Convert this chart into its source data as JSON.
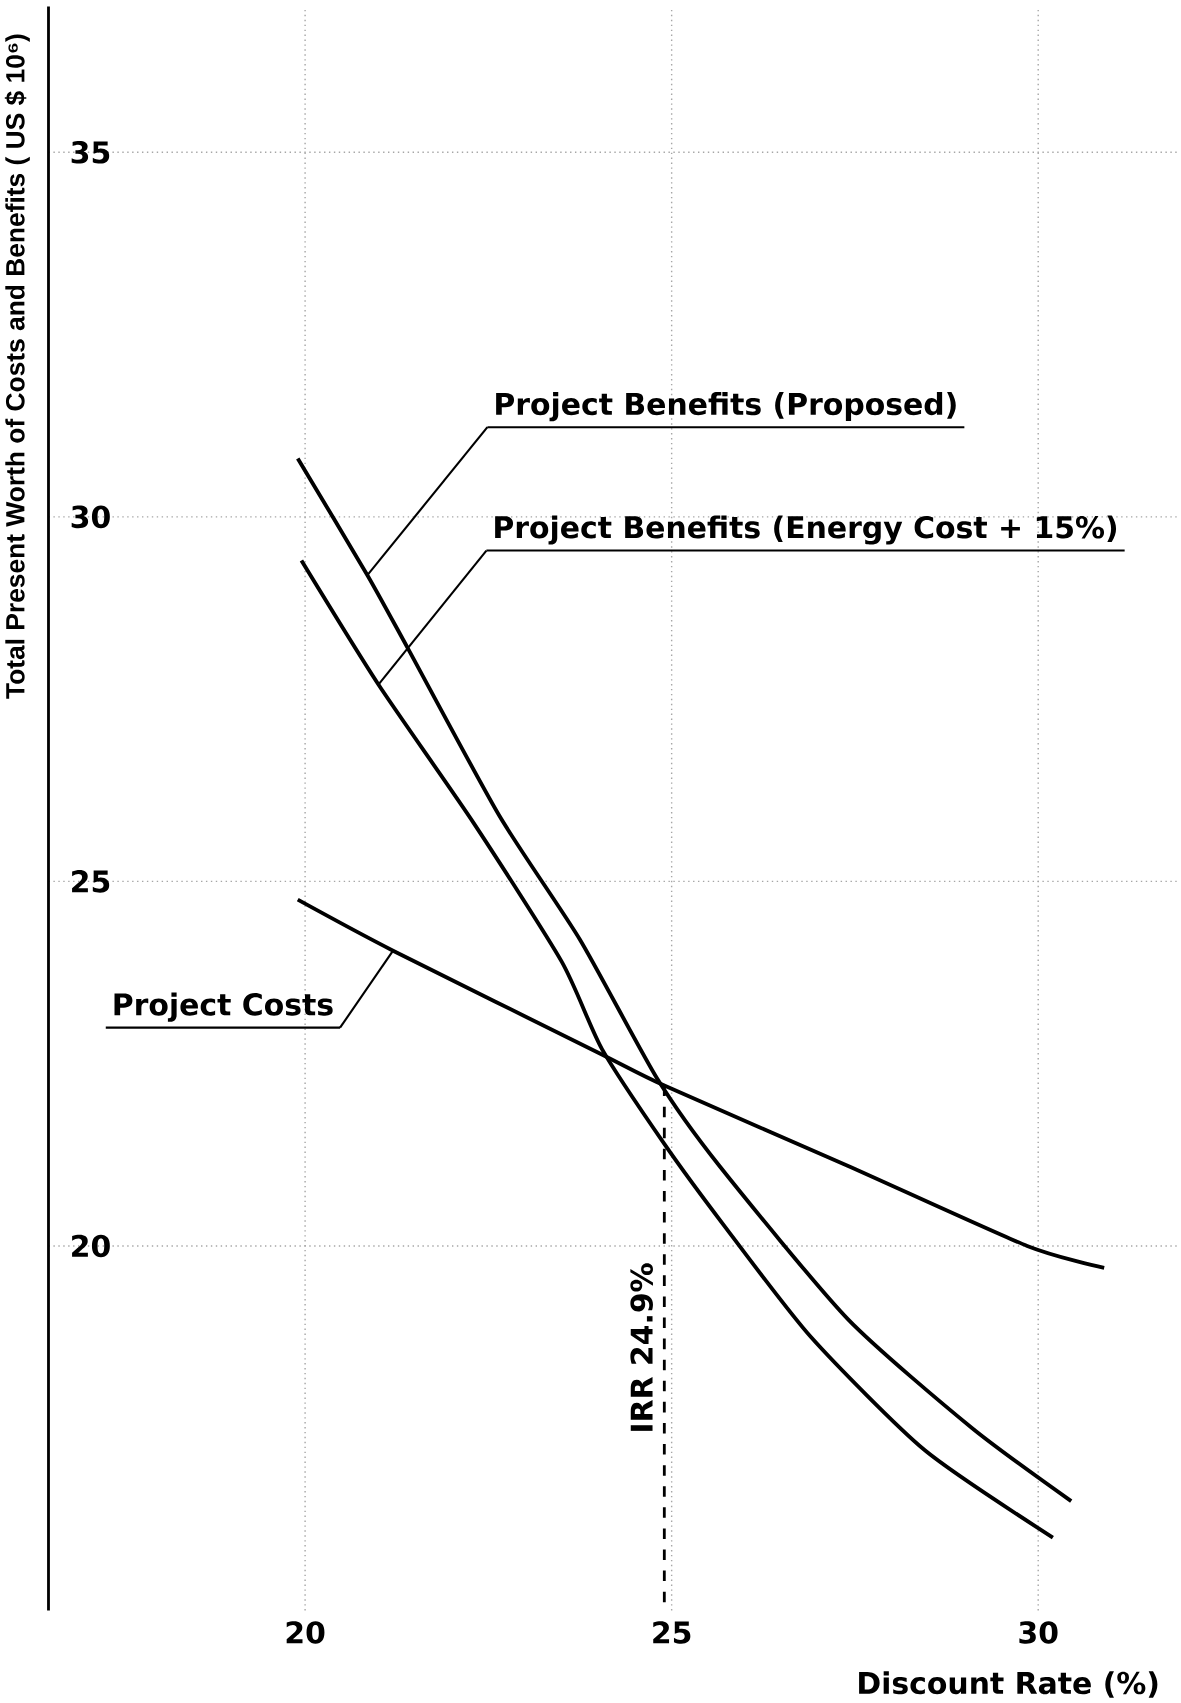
{
  "chart_data": {
    "type": "line",
    "xlabel": "Discount Rate (%)",
    "ylabel": "Total Present Worth of Costs and Benefits ( US $ 10⁶)",
    "xlim": [
      16.5,
      31.9
    ],
    "ylim": [
      15,
      37
    ],
    "xticks": [
      20,
      25,
      30
    ],
    "yticks": [
      20,
      25,
      30,
      35
    ],
    "grid": true,
    "marker": "none",
    "line_style": "solid",
    "series": [
      {
        "name": "Project Benefits (Proposed)",
        "color": "#000000",
        "x": [
          19.9,
          20.85,
          21.4,
          22.65,
          23.75,
          24.8,
          25.65,
          27.4,
          29.1,
          30.45
        ],
        "values": [
          30.8,
          29.2,
          28.2,
          25.9,
          24.2,
          22.3,
          21.1,
          19.0,
          17.5,
          16.5
        ]
      },
      {
        "name": "Project Benefits (Energy Cost + 15%)",
        "color": "#000000",
        "x": [
          19.95,
          21.0,
          22.3,
          23.5,
          24.05,
          24.9,
          25.7,
          26.9,
          28.45,
          30.2
        ],
        "values": [
          29.4,
          27.7,
          25.8,
          23.9,
          22.7,
          21.4,
          20.3,
          18.75,
          17.2,
          16.0
        ]
      },
      {
        "name": "Project Costs",
        "color": "#000000",
        "x": [
          19.9,
          21.2,
          24.0,
          24.9,
          27.4,
          29.85,
          30.9
        ],
        "values": [
          24.75,
          24.05,
          22.65,
          22.2,
          21.1,
          20.0,
          19.7
        ]
      }
    ],
    "ref_lines": [
      {
        "axis": "x",
        "value": 24.9,
        "label": "IRR 24.9%",
        "line_style": "dashed",
        "color": "#000000"
      }
    ]
  }
}
